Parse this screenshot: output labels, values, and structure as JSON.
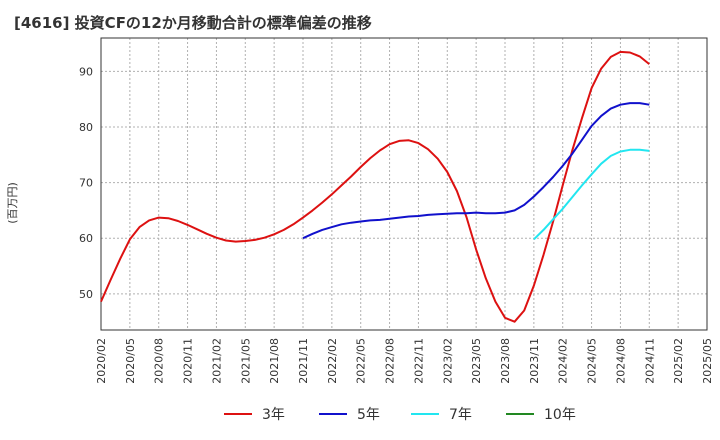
{
  "chart_data": {
    "type": "line",
    "title": "[4616]  投資CFの12か月移動合計の標準偏差の推移",
    "ylabel": "(百万円)",
    "xlabel": "",
    "x_tick_labels": [
      "2020/02",
      "2020/05",
      "2020/08",
      "2020/11",
      "2021/02",
      "2021/05",
      "2021/08",
      "2021/11",
      "2022/02",
      "2022/05",
      "2022/08",
      "2022/11",
      "2023/02",
      "2023/05",
      "2023/08",
      "2023/11",
      "2024/02",
      "2024/05",
      "2024/08",
      "2024/11",
      "2025/02",
      "2025/05"
    ],
    "y_ticks": [
      50,
      60,
      70,
      80,
      90
    ],
    "ylim": [
      43.5,
      96
    ],
    "xlim": [
      "2020/02",
      "2025/05"
    ],
    "grid": true,
    "legend_position": "bottom",
    "series": [
      {
        "name": "3年",
        "color": "#dd1111",
        "points": [
          [
            "2020/02",
            48.6
          ],
          [
            "2020/03",
            52.5
          ],
          [
            "2020/04",
            56.3
          ],
          [
            "2020/05",
            59.8
          ],
          [
            "2020/06",
            62.0
          ],
          [
            "2020/07",
            63.2
          ],
          [
            "2020/08",
            63.7
          ],
          [
            "2020/09",
            63.6
          ],
          [
            "2020/10",
            63.1
          ],
          [
            "2020/11",
            62.4
          ],
          [
            "2020/12",
            61.6
          ],
          [
            "2021/01",
            60.8
          ],
          [
            "2021/02",
            60.1
          ],
          [
            "2021/03",
            59.6
          ],
          [
            "2021/04",
            59.4
          ],
          [
            "2021/05",
            59.5
          ],
          [
            "2021/06",
            59.7
          ],
          [
            "2021/07",
            60.1
          ],
          [
            "2021/08",
            60.7
          ],
          [
            "2021/09",
            61.5
          ],
          [
            "2021/10",
            62.5
          ],
          [
            "2021/11",
            63.7
          ],
          [
            "2021/12",
            65.0
          ],
          [
            "2022/01",
            66.4
          ],
          [
            "2022/02",
            67.9
          ],
          [
            "2022/03",
            69.5
          ],
          [
            "2022/04",
            71.1
          ],
          [
            "2022/05",
            72.8
          ],
          [
            "2022/06",
            74.4
          ],
          [
            "2022/07",
            75.8
          ],
          [
            "2022/08",
            76.9
          ],
          [
            "2022/09",
            77.5
          ],
          [
            "2022/10",
            77.6
          ],
          [
            "2022/11",
            77.1
          ],
          [
            "2022/12",
            76.0
          ],
          [
            "2023/01",
            74.3
          ],
          [
            "2023/02",
            71.9
          ],
          [
            "2023/03",
            68.5
          ],
          [
            "2023/04",
            63.8
          ],
          [
            "2023/05",
            58.0
          ],
          [
            "2023/06",
            52.8
          ],
          [
            "2023/07",
            48.6
          ],
          [
            "2023/08",
            45.7
          ],
          [
            "2023/09",
            45.0
          ],
          [
            "2023/10",
            47.0
          ],
          [
            "2023/11",
            51.5
          ],
          [
            "2023/12",
            57.0
          ],
          [
            "2024/01",
            63.0
          ],
          [
            "2024/02",
            69.5
          ],
          [
            "2024/03",
            75.8
          ],
          [
            "2024/04",
            81.6
          ],
          [
            "2024/05",
            87.0
          ],
          [
            "2024/06",
            90.5
          ],
          [
            "2024/07",
            92.6
          ],
          [
            "2024/08",
            93.5
          ],
          [
            "2024/09",
            93.4
          ],
          [
            "2024/10",
            92.7
          ],
          [
            "2024/11",
            91.3
          ]
        ]
      },
      {
        "name": "5年",
        "color": "#1111cc",
        "points": [
          [
            "2021/11",
            60.0
          ],
          [
            "2021/12",
            60.8
          ],
          [
            "2022/01",
            61.5
          ],
          [
            "2022/02",
            62.0
          ],
          [
            "2022/03",
            62.5
          ],
          [
            "2022/04",
            62.8
          ],
          [
            "2022/05",
            63.0
          ],
          [
            "2022/06",
            63.2
          ],
          [
            "2022/07",
            63.3
          ],
          [
            "2022/08",
            63.5
          ],
          [
            "2022/09",
            63.7
          ],
          [
            "2022/10",
            63.9
          ],
          [
            "2022/11",
            64.0
          ],
          [
            "2022/12",
            64.2
          ],
          [
            "2023/01",
            64.3
          ],
          [
            "2023/02",
            64.4
          ],
          [
            "2023/03",
            64.5
          ],
          [
            "2023/04",
            64.5
          ],
          [
            "2023/05",
            64.6
          ],
          [
            "2023/06",
            64.5
          ],
          [
            "2023/07",
            64.5
          ],
          [
            "2023/08",
            64.6
          ],
          [
            "2023/09",
            65.0
          ],
          [
            "2023/10",
            66.0
          ],
          [
            "2023/11",
            67.5
          ],
          [
            "2023/12",
            69.2
          ],
          [
            "2024/01",
            71.0
          ],
          [
            "2024/02",
            73.0
          ],
          [
            "2024/03",
            75.2
          ],
          [
            "2024/04",
            77.7
          ],
          [
            "2024/05",
            80.2
          ],
          [
            "2024/06",
            82.0
          ],
          [
            "2024/07",
            83.3
          ],
          [
            "2024/08",
            84.0
          ],
          [
            "2024/09",
            84.3
          ],
          [
            "2024/10",
            84.3
          ],
          [
            "2024/11",
            84.0
          ]
        ]
      },
      {
        "name": "7年",
        "color": "#22e6f0",
        "points": [
          [
            "2023/11",
            59.8
          ],
          [
            "2023/12",
            61.5
          ],
          [
            "2024/01",
            63.4
          ],
          [
            "2024/02",
            65.3
          ],
          [
            "2024/03",
            67.4
          ],
          [
            "2024/04",
            69.5
          ],
          [
            "2024/05",
            71.5
          ],
          [
            "2024/06",
            73.4
          ],
          [
            "2024/07",
            74.8
          ],
          [
            "2024/08",
            75.6
          ],
          [
            "2024/09",
            75.9
          ],
          [
            "2024/10",
            75.9
          ],
          [
            "2024/11",
            75.7
          ]
        ]
      },
      {
        "name": "10年",
        "color": "#228822",
        "points": []
      }
    ]
  }
}
